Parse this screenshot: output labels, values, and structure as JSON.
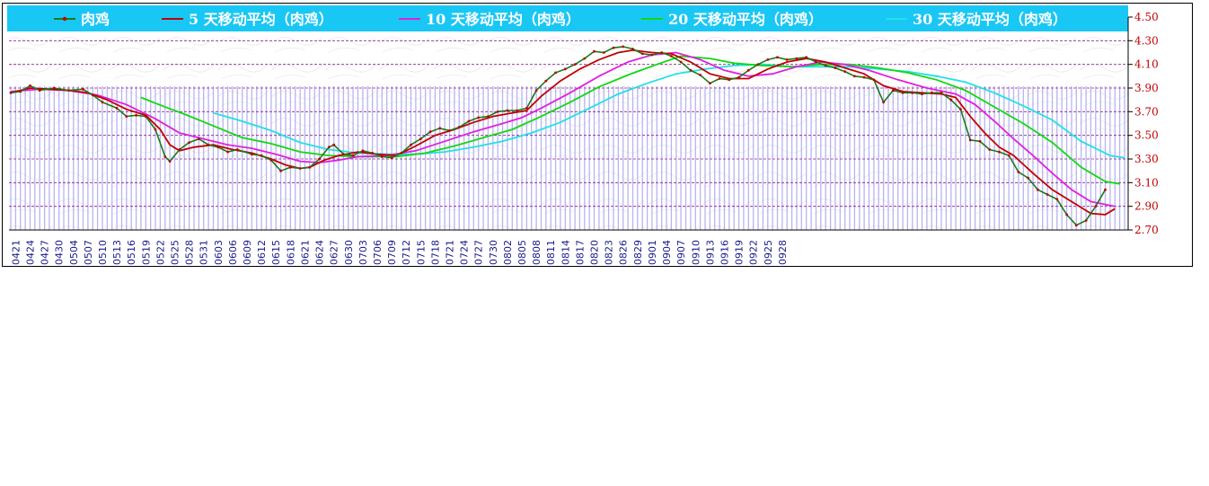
{
  "chart_data": {
    "type": "line",
    "title": "",
    "xlabel": "",
    "ylabel": "",
    "ylim": [
      2.7,
      4.5
    ],
    "y_axis_side": "right",
    "y_ticks": [
      "4.50",
      "4.30",
      "4.10",
      "3.90",
      "3.70",
      "3.50",
      "3.30",
      "3.10",
      "2.90",
      "2.70"
    ],
    "x_tick_labels": [
      "0421",
      "0424",
      "0427",
      "0430",
      "0504",
      "0507",
      "0510",
      "0513",
      "0516",
      "0519",
      "0522",
      "0525",
      "0528",
      "0531",
      "0603",
      "0606",
      "0609",
      "0612",
      "0615",
      "0618",
      "0621",
      "0624",
      "0627",
      "0630",
      "0703",
      "0706",
      "0709",
      "0712",
      "0715",
      "0718",
      "0721",
      "0724",
      "0727",
      "0730",
      "0802",
      "0805",
      "0808",
      "0811",
      "0814",
      "0817",
      "0820",
      "0823",
      "0826",
      "0829",
      "0901",
      "0904",
      "0907",
      "0910",
      "0913",
      "0916",
      "0919",
      "0922",
      "0925",
      "0928"
    ],
    "grid": true,
    "legend_position": "top",
    "colors": {
      "legend_bg": "#19c7f5",
      "grid": "#8a2090",
      "axis_text": "#c00000",
      "x_label_text": "#1a1a8a",
      "bars": "#b8b4f0",
      "daily": "#1a7a1a",
      "daily_marker": "#c00000",
      "ma5": "#c00000",
      "ma10": "#e020e0",
      "ma20": "#10d810",
      "ma30": "#20e0e8"
    },
    "series": [
      {
        "name": "肉鸡",
        "key": "daily",
        "color": "#1a7a1a",
        "points": [
          [
            0,
            3.86
          ],
          [
            2,
            3.87
          ],
          [
            4,
            3.92
          ],
          [
            6,
            3.88
          ],
          [
            9,
            3.9
          ],
          [
            12,
            3.88
          ],
          [
            15,
            3.89
          ],
          [
            17,
            3.84
          ],
          [
            19,
            3.78
          ],
          [
            22,
            3.73
          ],
          [
            24,
            3.66
          ],
          [
            26,
            3.67
          ],
          [
            28,
            3.66
          ],
          [
            30,
            3.55
          ],
          [
            32,
            3.32
          ],
          [
            33,
            3.28
          ],
          [
            35,
            3.38
          ],
          [
            37,
            3.44
          ],
          [
            39,
            3.47
          ],
          [
            41,
            3.42
          ],
          [
            43,
            3.4
          ],
          [
            45,
            3.36
          ],
          [
            47,
            3.38
          ],
          [
            50,
            3.34
          ],
          [
            52,
            3.33
          ],
          [
            54,
            3.29
          ],
          [
            56,
            3.2
          ],
          [
            58,
            3.23
          ],
          [
            60,
            3.22
          ],
          [
            62,
            3.23
          ],
          [
            64,
            3.3
          ],
          [
            66,
            3.4
          ],
          [
            67,
            3.42
          ],
          [
            69,
            3.34
          ],
          [
            71,
            3.33
          ],
          [
            73,
            3.37
          ],
          [
            75,
            3.35
          ],
          [
            77,
            3.32
          ],
          [
            79,
            3.31
          ],
          [
            81,
            3.35
          ],
          [
            83,
            3.42
          ],
          [
            85,
            3.47
          ],
          [
            87,
            3.53
          ],
          [
            89,
            3.56
          ],
          [
            91,
            3.54
          ],
          [
            93,
            3.57
          ],
          [
            95,
            3.62
          ],
          [
            97,
            3.65
          ],
          [
            99,
            3.66
          ],
          [
            101,
            3.7
          ],
          [
            103,
            3.71
          ],
          [
            105,
            3.71
          ],
          [
            107,
            3.73
          ],
          [
            109,
            3.88
          ],
          [
            111,
            3.96
          ],
          [
            113,
            4.03
          ],
          [
            115,
            4.06
          ],
          [
            117,
            4.1
          ],
          [
            119,
            4.15
          ],
          [
            121,
            4.21
          ],
          [
            123,
            4.2
          ],
          [
            125,
            4.24
          ],
          [
            127,
            4.25
          ],
          [
            129,
            4.23
          ],
          [
            131,
            4.19
          ],
          [
            133,
            4.18
          ],
          [
            135,
            4.2
          ],
          [
            137,
            4.17
          ],
          [
            139,
            4.12
          ],
          [
            141,
            4.05
          ],
          [
            143,
            4.01
          ],
          [
            145,
            3.94
          ],
          [
            147,
            3.98
          ],
          [
            149,
            3.97
          ],
          [
            151,
            3.99
          ],
          [
            153,
            4.05
          ],
          [
            155,
            4.1
          ],
          [
            157,
            4.14
          ],
          [
            159,
            4.16
          ],
          [
            161,
            4.14
          ],
          [
            163,
            4.15
          ],
          [
            165,
            4.16
          ],
          [
            167,
            4.12
          ],
          [
            169,
            4.09
          ],
          [
            171,
            4.07
          ],
          [
            173,
            4.04
          ],
          [
            175,
            4.0
          ],
          [
            177,
            3.99
          ],
          [
            179,
            3.97
          ],
          [
            181,
            3.78
          ],
          [
            183,
            3.88
          ],
          [
            185,
            3.86
          ],
          [
            187,
            3.86
          ],
          [
            189,
            3.85
          ],
          [
            191,
            3.86
          ],
          [
            193,
            3.86
          ],
          [
            195,
            3.8
          ],
          [
            197,
            3.72
          ],
          [
            199,
            3.46
          ],
          [
            201,
            3.45
          ],
          [
            203,
            3.38
          ],
          [
            205,
            3.36
          ],
          [
            207,
            3.33
          ],
          [
            209,
            3.19
          ],
          [
            211,
            3.14
          ],
          [
            213,
            3.04
          ],
          [
            215,
            3.0
          ],
          [
            217,
            2.96
          ],
          [
            219,
            2.83
          ],
          [
            221,
            2.74
          ],
          [
            223,
            2.78
          ],
          [
            225,
            2.9
          ],
          [
            227,
            3.04
          ]
        ]
      },
      {
        "name": "5 天移动平均（肉鸡）",
        "key": "ma5",
        "color": "#c00000",
        "points": [
          [
            0,
            3.86
          ],
          [
            4,
            3.9
          ],
          [
            8,
            3.89
          ],
          [
            12,
            3.88
          ],
          [
            16,
            3.86
          ],
          [
            20,
            3.8
          ],
          [
            24,
            3.72
          ],
          [
            28,
            3.67
          ],
          [
            31,
            3.55
          ],
          [
            33,
            3.42
          ],
          [
            35,
            3.37
          ],
          [
            38,
            3.4
          ],
          [
            42,
            3.42
          ],
          [
            46,
            3.38
          ],
          [
            50,
            3.35
          ],
          [
            54,
            3.3
          ],
          [
            57,
            3.25
          ],
          [
            60,
            3.22
          ],
          [
            62,
            3.23
          ],
          [
            65,
            3.29
          ],
          [
            68,
            3.33
          ],
          [
            72,
            3.36
          ],
          [
            76,
            3.34
          ],
          [
            80,
            3.33
          ],
          [
            84,
            3.41
          ],
          [
            88,
            3.5
          ],
          [
            92,
            3.55
          ],
          [
            96,
            3.61
          ],
          [
            100,
            3.66
          ],
          [
            104,
            3.69
          ],
          [
            107,
            3.71
          ],
          [
            110,
            3.83
          ],
          [
            114,
            3.96
          ],
          [
            118,
            4.06
          ],
          [
            122,
            4.14
          ],
          [
            126,
            4.2
          ],
          [
            129,
            4.22
          ],
          [
            133,
            4.2
          ],
          [
            137,
            4.19
          ],
          [
            141,
            4.12
          ],
          [
            145,
            4.02
          ],
          [
            149,
            3.98
          ],
          [
            153,
            3.98
          ],
          [
            157,
            4.06
          ],
          [
            161,
            4.12
          ],
          [
            165,
            4.15
          ],
          [
            169,
            4.12
          ],
          [
            173,
            4.07
          ],
          [
            177,
            4.02
          ],
          [
            181,
            3.92
          ],
          [
            185,
            3.87
          ],
          [
            189,
            3.86
          ],
          [
            193,
            3.85
          ],
          [
            196,
            3.82
          ],
          [
            199,
            3.66
          ],
          [
            202,
            3.52
          ],
          [
            205,
            3.4
          ],
          [
            208,
            3.33
          ],
          [
            212,
            3.18
          ],
          [
            216,
            3.04
          ],
          [
            220,
            2.94
          ],
          [
            224,
            2.84
          ],
          [
            227,
            2.83
          ],
          [
            229,
            2.88
          ]
        ]
      },
      {
        "name": "10 天移动平均（肉鸡）",
        "key": "ma10",
        "color": "#e020e0",
        "points": [
          [
            0,
            3.87
          ],
          [
            6,
            3.89
          ],
          [
            12,
            3.88
          ],
          [
            18,
            3.84
          ],
          [
            24,
            3.76
          ],
          [
            30,
            3.64
          ],
          [
            35,
            3.52
          ],
          [
            40,
            3.47
          ],
          [
            45,
            3.42
          ],
          [
            50,
            3.39
          ],
          [
            55,
            3.34
          ],
          [
            60,
            3.28
          ],
          [
            64,
            3.27
          ],
          [
            68,
            3.29
          ],
          [
            72,
            3.32
          ],
          [
            78,
            3.33
          ],
          [
            84,
            3.37
          ],
          [
            90,
            3.45
          ],
          [
            96,
            3.53
          ],
          [
            102,
            3.6
          ],
          [
            106,
            3.65
          ],
          [
            110,
            3.73
          ],
          [
            116,
            3.86
          ],
          [
            122,
            4.0
          ],
          [
            128,
            4.12
          ],
          [
            133,
            4.18
          ],
          [
            138,
            4.2
          ],
          [
            143,
            4.14
          ],
          [
            148,
            4.05
          ],
          [
            153,
            4.0
          ],
          [
            158,
            4.02
          ],
          [
            163,
            4.08
          ],
          [
            168,
            4.12
          ],
          [
            173,
            4.1
          ],
          [
            178,
            4.05
          ],
          [
            184,
            3.97
          ],
          [
            190,
            3.9
          ],
          [
            196,
            3.85
          ],
          [
            200,
            3.76
          ],
          [
            204,
            3.62
          ],
          [
            208,
            3.47
          ],
          [
            212,
            3.33
          ],
          [
            216,
            3.18
          ],
          [
            220,
            3.04
          ],
          [
            224,
            2.94
          ],
          [
            229,
            2.9
          ]
        ]
      },
      {
        "name": "20 天移动平均（肉鸡）",
        "key": "ma20",
        "color": "#10d810",
        "points": [
          [
            27,
            3.82
          ],
          [
            32,
            3.74
          ],
          [
            36,
            3.68
          ],
          [
            42,
            3.58
          ],
          [
            48,
            3.48
          ],
          [
            54,
            3.43
          ],
          [
            60,
            3.36
          ],
          [
            66,
            3.33
          ],
          [
            72,
            3.32
          ],
          [
            80,
            3.32
          ],
          [
            86,
            3.35
          ],
          [
            92,
            3.41
          ],
          [
            98,
            3.48
          ],
          [
            104,
            3.55
          ],
          [
            110,
            3.66
          ],
          [
            116,
            3.78
          ],
          [
            122,
            3.91
          ],
          [
            128,
            4.01
          ],
          [
            134,
            4.1
          ],
          [
            139,
            4.17
          ],
          [
            145,
            4.15
          ],
          [
            150,
            4.11
          ],
          [
            156,
            4.09
          ],
          [
            162,
            4.08
          ],
          [
            168,
            4.1
          ],
          [
            174,
            4.1
          ],
          [
            180,
            4.07
          ],
          [
            186,
            4.03
          ],
          [
            192,
            3.97
          ],
          [
            198,
            3.88
          ],
          [
            204,
            3.74
          ],
          [
            210,
            3.6
          ],
          [
            216,
            3.44
          ],
          [
            222,
            3.23
          ],
          [
            227,
            3.11
          ],
          [
            230,
            3.09
          ]
        ]
      },
      {
        "name": "30 天移动平均（肉鸡）",
        "key": "ma30",
        "color": "#20e0e8",
        "points": [
          [
            42,
            3.69
          ],
          [
            48,
            3.62
          ],
          [
            54,
            3.54
          ],
          [
            60,
            3.44
          ],
          [
            66,
            3.38
          ],
          [
            72,
            3.35
          ],
          [
            78,
            3.34
          ],
          [
            84,
            3.34
          ],
          [
            90,
            3.36
          ],
          [
            96,
            3.4
          ],
          [
            102,
            3.45
          ],
          [
            108,
            3.52
          ],
          [
            114,
            3.61
          ],
          [
            120,
            3.73
          ],
          [
            126,
            3.85
          ],
          [
            132,
            3.94
          ],
          [
            138,
            4.02
          ],
          [
            144,
            4.06
          ],
          [
            150,
            4.09
          ],
          [
            156,
            4.1
          ],
          [
            162,
            4.08
          ],
          [
            168,
            4.08
          ],
          [
            174,
            4.08
          ],
          [
            180,
            4.06
          ],
          [
            186,
            4.04
          ],
          [
            192,
            4.0
          ],
          [
            198,
            3.95
          ],
          [
            204,
            3.86
          ],
          [
            210,
            3.75
          ],
          [
            216,
            3.63
          ],
          [
            222,
            3.45
          ],
          [
            228,
            3.33
          ],
          [
            231,
            3.31
          ]
        ]
      }
    ]
  }
}
